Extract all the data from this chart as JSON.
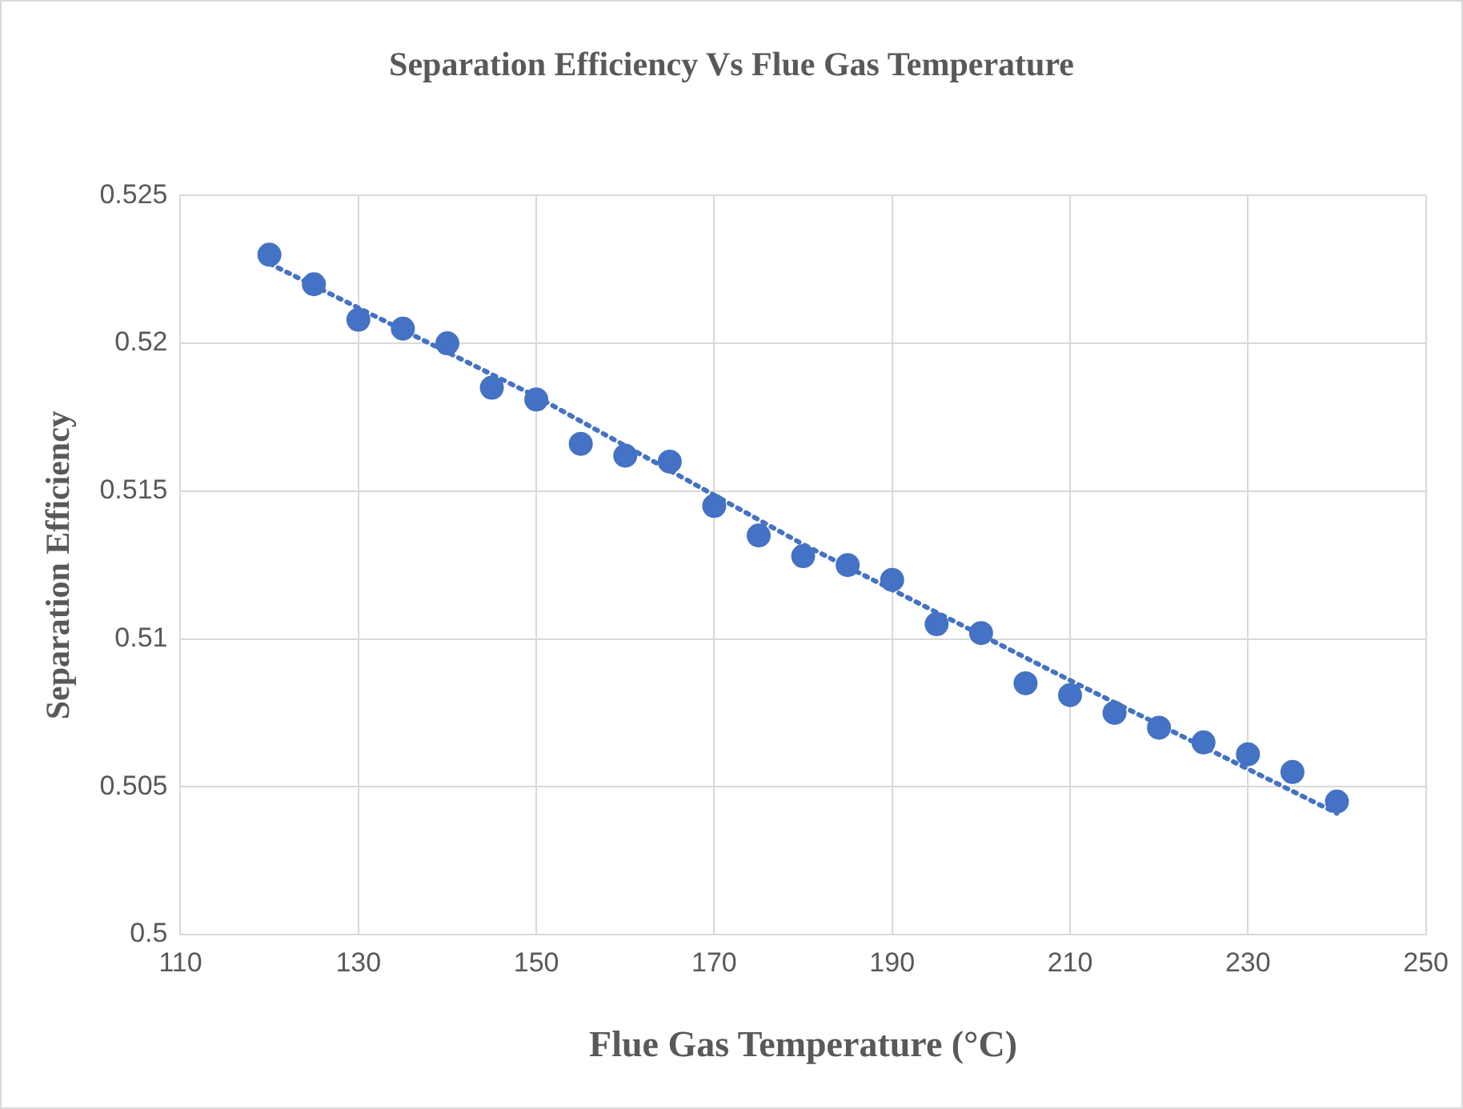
{
  "chart_data": {
    "type": "scatter",
    "title": "Separation Efficiency Vs Flue Gas Temperature",
    "xlabel": "Flue Gas Temperature (°C)",
    "ylabel": "Separation Efficiency",
    "series": [
      {
        "type": "scatter",
        "color": "#4472c4",
        "marker": "circle",
        "x": [
          120,
          125,
          130,
          135,
          140,
          145,
          150,
          155,
          160,
          165,
          170,
          175,
          180,
          185,
          190,
          195,
          200,
          205,
          210,
          215,
          220,
          225,
          230,
          235,
          240
        ],
        "values": [
          0.523,
          0.522,
          0.5208,
          0.5205,
          0.52,
          0.5185,
          0.5181,
          0.5166,
          0.5162,
          0.516,
          0.5145,
          0.5135,
          0.5128,
          0.5125,
          0.512,
          0.5105,
          0.5102,
          0.5085,
          0.5081,
          0.5075,
          0.507,
          0.5065,
          0.5061,
          0.5055,
          0.5045
        ]
      },
      {
        "type": "line",
        "color": "#4472c4",
        "line_style": "dotted",
        "marker": "none",
        "x": [
          120,
          150,
          180,
          210,
          240
        ],
        "values": [
          0.5227,
          0.5182,
          0.5132,
          0.5086,
          0.5041
        ]
      }
    ],
    "xlim": [
      110,
      250
    ],
    "xticks": [
      110,
      130,
      150,
      170,
      190,
      210,
      230,
      250
    ],
    "ylim": [
      0.5,
      0.525
    ],
    "yticks": [
      0.5,
      0.505,
      0.51,
      0.515,
      0.52,
      0.525
    ],
    "grid": true,
    "legend": false
  }
}
